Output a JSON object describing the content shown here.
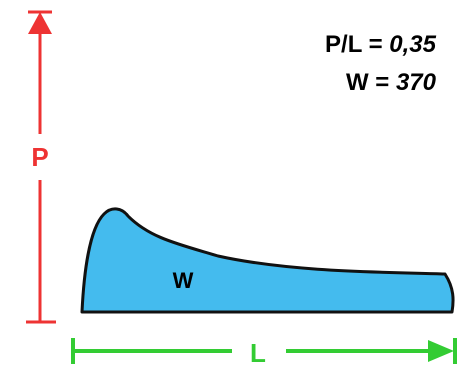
{
  "ratio_label": "P/L = ",
  "ratio_value": "0,35",
  "weight_label": "W = ",
  "weight_value": "370",
  "shape_label": "W",
  "height_label": "P",
  "length_label": "L",
  "colors": {
    "height_dimension": "#ee3333",
    "length_dimension": "#33cc33",
    "shape_fill": "#44bbee",
    "shape_stroke": "#111111",
    "text": "#000000"
  }
}
